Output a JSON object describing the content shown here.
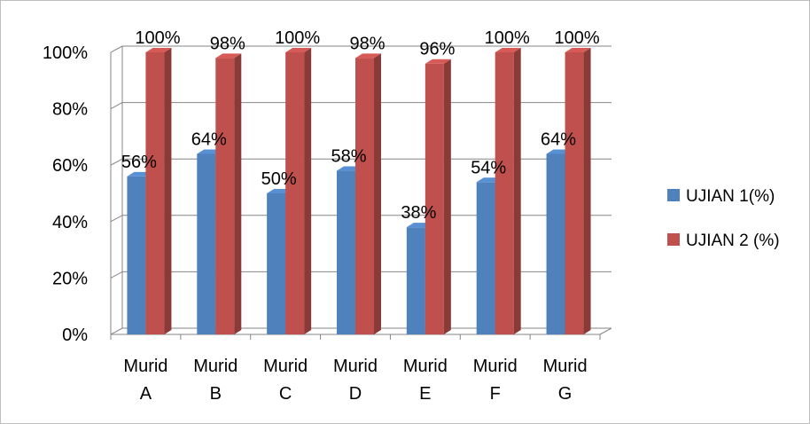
{
  "chart_data": {
    "type": "bar",
    "title": "",
    "xlabel": "",
    "ylabel": "",
    "categories": [
      "Murid A",
      "Murid B",
      "Murid C",
      "Murid D",
      "Murid E",
      "Murid F",
      "Murid G"
    ],
    "category_lines": [
      [
        "Murid",
        "A"
      ],
      [
        "Murid",
        "B"
      ],
      [
        "Murid",
        "C"
      ],
      [
        "Murid",
        "D"
      ],
      [
        "Murid",
        "E"
      ],
      [
        "Murid",
        "F"
      ],
      [
        "Murid",
        "G"
      ]
    ],
    "series": [
      {
        "name": "UJIAN 1(%)",
        "values": [
          56,
          64,
          50,
          58,
          38,
          54,
          64
        ],
        "labels": [
          "56%",
          "64%",
          "50%",
          "58%",
          "38%",
          "54%",
          "64%"
        ],
        "color": "#4F81BD"
      },
      {
        "name": "UJIAN 2 (%)",
        "values": [
          100,
          98,
          100,
          98,
          96,
          100,
          100
        ],
        "labels": [
          "100%",
          "98%",
          "100%",
          "98%",
          "96%",
          "100%",
          "100%"
        ],
        "color": "#C0504D"
      }
    ],
    "ylim": [
      0,
      100
    ],
    "y_ticks": [
      0,
      20,
      40,
      60,
      80,
      100
    ],
    "y_tick_labels": [
      "0%",
      "20%",
      "40%",
      "60%",
      "80%",
      "100%"
    ],
    "grid": true,
    "legend_position": "right",
    "style": "3d-clustered-column"
  }
}
